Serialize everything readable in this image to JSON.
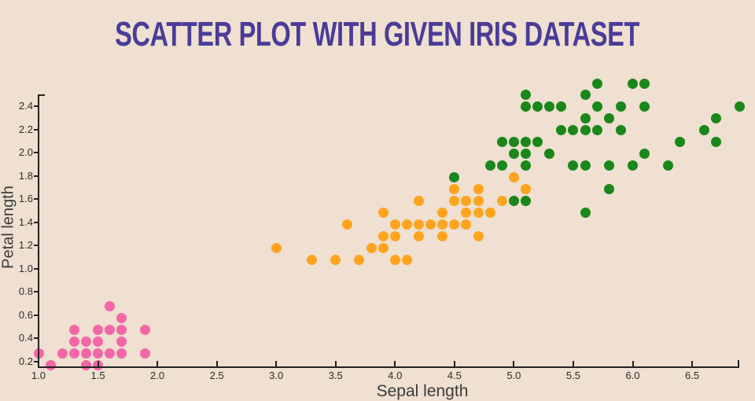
{
  "title": "SCATTER PLOT WITH GIVEN IRIS DATASET",
  "colors": {
    "background": "#EFE0D1",
    "title": "#4A3C98",
    "axis": "#222222",
    "tick_label": "#2d2d2d",
    "axis_title": "#3b3b3b",
    "series_pink": "#F566A7",
    "series_orange": "#FFA41E",
    "series_green": "#1A871A"
  },
  "chart_data": {
    "type": "scatter",
    "title": "SCATTER PLOT WITH GIVEN IRIS DATASET",
    "xlabel": "Sepal length",
    "ylabel": "Petal length",
    "x_tick_labels": [
      "1.0",
      "1.5",
      "2.0",
      "2.5",
      "3.0",
      "3.5",
      "4.0",
      "4.5",
      "5.0",
      "5.5",
      "6.0",
      "6.5"
    ],
    "y_tick_labels": [
      "0.2",
      "0.4",
      "0.6",
      "0.8",
      "1.0",
      "1.2",
      "1.4",
      "1.6",
      "1.8",
      "2.0",
      "2.2",
      "2.4"
    ],
    "x_range": [
      1.0,
      6.9
    ],
    "y_range": [
      0.1,
      2.5
    ],
    "grid": false,
    "legend": "none",
    "series": [
      {
        "name": "series-pink",
        "color": "#F566A7",
        "points": [
          [
            1.0,
            0.2
          ],
          [
            1.1,
            0.1
          ],
          [
            1.2,
            0.2
          ],
          [
            1.3,
            0.2
          ],
          [
            1.3,
            0.3
          ],
          [
            1.3,
            0.4
          ],
          [
            1.4,
            0.1
          ],
          [
            1.4,
            0.2
          ],
          [
            1.4,
            0.3
          ],
          [
            1.5,
            0.1
          ],
          [
            1.5,
            0.2
          ],
          [
            1.5,
            0.3
          ],
          [
            1.5,
            0.4
          ],
          [
            1.6,
            0.2
          ],
          [
            1.6,
            0.4
          ],
          [
            1.6,
            0.6
          ],
          [
            1.7,
            0.2
          ],
          [
            1.7,
            0.3
          ],
          [
            1.7,
            0.4
          ],
          [
            1.7,
            0.5
          ],
          [
            1.9,
            0.2
          ],
          [
            1.9,
            0.4
          ]
        ]
      },
      {
        "name": "series-orange",
        "color": "#FFA41E",
        "points": [
          [
            3.0,
            1.1
          ],
          [
            3.3,
            1.0
          ],
          [
            3.5,
            1.0
          ],
          [
            3.6,
            1.3
          ],
          [
            3.7,
            1.0
          ],
          [
            3.8,
            1.1
          ],
          [
            3.9,
            1.1
          ],
          [
            3.9,
            1.2
          ],
          [
            3.9,
            1.4
          ],
          [
            4.0,
            1.0
          ],
          [
            4.0,
            1.2
          ],
          [
            4.0,
            1.3
          ],
          [
            4.1,
            1.0
          ],
          [
            4.1,
            1.3
          ],
          [
            4.2,
            1.2
          ],
          [
            4.2,
            1.3
          ],
          [
            4.2,
            1.5
          ],
          [
            4.3,
            1.3
          ],
          [
            4.4,
            1.2
          ],
          [
            4.4,
            1.3
          ],
          [
            4.4,
            1.4
          ],
          [
            4.5,
            1.3
          ],
          [
            4.5,
            1.5
          ],
          [
            4.5,
            1.6
          ],
          [
            4.6,
            1.3
          ],
          [
            4.6,
            1.4
          ],
          [
            4.6,
            1.5
          ],
          [
            4.7,
            1.2
          ],
          [
            4.7,
            1.4
          ],
          [
            4.7,
            1.5
          ],
          [
            4.7,
            1.6
          ],
          [
            4.8,
            1.4
          ],
          [
            4.9,
            1.5
          ],
          [
            5.0,
            1.7
          ],
          [
            5.1,
            1.6
          ]
        ]
      },
      {
        "name": "series-green",
        "color": "#1A871A",
        "points": [
          [
            4.5,
            1.7
          ],
          [
            4.8,
            1.8
          ],
          [
            4.9,
            1.8
          ],
          [
            4.9,
            2.0
          ],
          [
            5.0,
            1.5
          ],
          [
            5.0,
            1.9
          ],
          [
            5.0,
            2.0
          ],
          [
            5.1,
            1.5
          ],
          [
            5.1,
            1.8
          ],
          [
            5.1,
            1.9
          ],
          [
            5.1,
            2.0
          ],
          [
            5.1,
            2.3
          ],
          [
            5.1,
            2.4
          ],
          [
            5.2,
            2.0
          ],
          [
            5.2,
            2.3
          ],
          [
            5.3,
            1.9
          ],
          [
            5.3,
            2.3
          ],
          [
            5.4,
            2.1
          ],
          [
            5.4,
            2.3
          ],
          [
            5.5,
            1.8
          ],
          [
            5.5,
            2.1
          ],
          [
            5.6,
            1.4
          ],
          [
            5.6,
            1.8
          ],
          [
            5.6,
            2.1
          ],
          [
            5.6,
            2.2
          ],
          [
            5.6,
            2.4
          ],
          [
            5.7,
            2.1
          ],
          [
            5.7,
            2.3
          ],
          [
            5.7,
            2.5
          ],
          [
            5.8,
            1.6
          ],
          [
            5.8,
            1.8
          ],
          [
            5.8,
            2.2
          ],
          [
            5.9,
            2.1
          ],
          [
            5.9,
            2.3
          ],
          [
            6.0,
            1.8
          ],
          [
            6.0,
            2.5
          ],
          [
            6.1,
            1.9
          ],
          [
            6.1,
            2.3
          ],
          [
            6.1,
            2.5
          ],
          [
            6.3,
            1.8
          ],
          [
            6.4,
            2.0
          ],
          [
            6.6,
            2.1
          ],
          [
            6.7,
            2.0
          ],
          [
            6.7,
            2.2
          ],
          [
            6.9,
            2.3
          ]
        ]
      }
    ]
  }
}
